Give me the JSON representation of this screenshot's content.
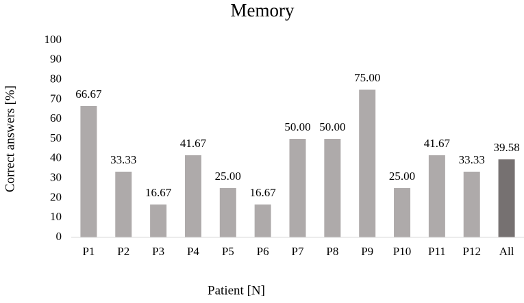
{
  "chart_data": {
    "type": "bar",
    "title": "Memory",
    "x_label": "Patient [N]",
    "y_label": "Correct answers [%]",
    "categories": [
      "P1",
      "P2",
      "P3",
      "P4",
      "P5",
      "P6",
      "P7",
      "P8",
      "P9",
      "P10",
      "P11",
      "P12",
      "All"
    ],
    "values": [
      66.67,
      33.33,
      16.67,
      41.67,
      25,
      16.67,
      50,
      50,
      75,
      25,
      41.67,
      33.33,
      39.58
    ],
    "value_labels": [
      "66.67",
      "33.33",
      "16.67",
      "41.67",
      "25.00",
      "16.67",
      "50.00",
      "50.00",
      "75.00",
      "25.00",
      "41.67",
      "33.33",
      "39.58"
    ],
    "colors": [
      "#aeaaaa",
      "#aeaaaa",
      "#aeaaaa",
      "#aeaaaa",
      "#aeaaaa",
      "#aeaaaa",
      "#aeaaaa",
      "#aeaaaa",
      "#aeaaaa",
      "#aeaaaa",
      "#aeaaaa",
      "#aeaaaa",
      "#767171"
    ],
    "ylim": [
      0,
      100
    ],
    "yticks": [
      0,
      10,
      20,
      30,
      40,
      50,
      60,
      70,
      80,
      90,
      100
    ],
    "grid": false
  }
}
